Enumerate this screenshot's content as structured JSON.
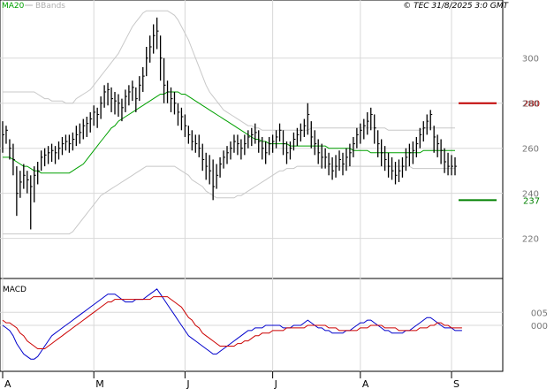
{
  "header": {
    "legend_ma": "MA20",
    "legend_bbands": "BBands",
    "stamp": "© TEC 31/8/2025 3:0 GMT"
  },
  "colors": {
    "price_bars": "#000000",
    "ma20": "#00a000",
    "bbands": "#c8c8c8",
    "resistance": "#c00000",
    "support": "#008000",
    "macd": "#0000cc",
    "signal": "#cc0000",
    "grid": "#d8d8d8"
  },
  "chart_data": [
    {
      "type": "line",
      "panel": "price",
      "yaxis": {
        "ticks": [
          220,
          240,
          260,
          280,
          300
        ],
        "tick_labels": [
          "220",
          "240",
          "260",
          "280",
          "300"
        ],
        "ylim": [
          203,
          325
        ]
      },
      "xaxis": {
        "labels": [
          "A",
          "M",
          "J",
          "J",
          "A",
          "S"
        ],
        "label_index": [
          0,
          26,
          52,
          77,
          102,
          128
        ],
        "n": 130
      },
      "levels": [
        {
          "value": 280,
          "label": "280",
          "color": "red"
        },
        {
          "value": 237,
          "label": "237",
          "color": "green"
        }
      ],
      "close": [
        266,
        268,
        260,
        255,
        240,
        245,
        248,
        246,
        243,
        248,
        250,
        256,
        257,
        258,
        259,
        258,
        260,
        262,
        263,
        262,
        264,
        266,
        267,
        270,
        271,
        273,
        276,
        275,
        280,
        285,
        286,
        282,
        281,
        280,
        278,
        283,
        285,
        287,
        282,
        288,
        292,
        300,
        305,
        310,
        312,
        300,
        288,
        285,
        282,
        280,
        276,
        274,
        270,
        266,
        263,
        262,
        260,
        255,
        252,
        250,
        243,
        248,
        253,
        256,
        258,
        260,
        263,
        262,
        260,
        262,
        265,
        266,
        267,
        263,
        260,
        258,
        262,
        263,
        265,
        268,
        262,
        258,
        260,
        264,
        266,
        268,
        270,
        275,
        265,
        262,
        258,
        256,
        256,
        253,
        250,
        252,
        255,
        253,
        256,
        258,
        262,
        266,
        268,
        270,
        272,
        275,
        269,
        262,
        258,
        255,
        252,
        250,
        248,
        250,
        252,
        256,
        258,
        259,
        262,
        266,
        269,
        272,
        275,
        265,
        262,
        259,
        254,
        252,
        252,
        252
      ],
      "high": [
        272,
        270,
        264,
        262,
        252,
        250,
        253,
        250,
        248,
        252,
        254,
        259,
        260,
        261,
        262,
        261,
        263,
        265,
        266,
        266,
        267,
        270,
        271,
        273,
        274,
        276,
        279,
        278,
        283,
        288,
        289,
        287,
        285,
        284,
        282,
        286,
        288,
        290,
        287,
        292,
        296,
        305,
        310,
        315,
        318,
        310,
        300,
        290,
        287,
        285,
        280,
        278,
        275,
        270,
        268,
        266,
        266,
        262,
        258,
        257,
        255,
        253,
        256,
        259,
        261,
        263,
        266,
        266,
        264,
        266,
        268,
        269,
        271,
        268,
        265,
        263,
        265,
        266,
        268,
        271,
        268,
        263,
        263,
        267,
        269,
        271,
        273,
        280,
        272,
        268,
        264,
        262,
        260,
        258,
        256,
        257,
        259,
        258,
        260,
        262,
        265,
        269,
        271,
        273,
        276,
        278,
        275,
        268,
        264,
        261,
        258,
        256,
        254,
        255,
        256,
        260,
        262,
        263,
        265,
        269,
        272,
        275,
        277,
        270,
        266,
        264,
        260,
        258,
        257,
        256
      ],
      "low": [
        258,
        262,
        255,
        248,
        230,
        238,
        242,
        240,
        224,
        236,
        244,
        250,
        252,
        253,
        254,
        253,
        255,
        257,
        259,
        258,
        259,
        261,
        262,
        264,
        265,
        267,
        270,
        269,
        273,
        278,
        279,
        276,
        275,
        274,
        272,
        276,
        279,
        281,
        276,
        281,
        285,
        292,
        298,
        302,
        304,
        290,
        280,
        280,
        276,
        275,
        270,
        268,
        265,
        262,
        259,
        258,
        256,
        250,
        246,
        244,
        237,
        242,
        247,
        251,
        253,
        255,
        258,
        257,
        255,
        257,
        260,
        261,
        262,
        258,
        255,
        253,
        257,
        258,
        260,
        263,
        257,
        253,
        255,
        259,
        261,
        263,
        265,
        266,
        260,
        257,
        253,
        251,
        251,
        248,
        246,
        247,
        250,
        248,
        250,
        252,
        256,
        260,
        262,
        264,
        266,
        268,
        262,
        256,
        252,
        250,
        247,
        246,
        244,
        245,
        247,
        250,
        252,
        253,
        256,
        260,
        263,
        266,
        268,
        258,
        256,
        253,
        249,
        248,
        248,
        248
      ],
      "ma20": [
        256,
        256,
        256,
        255,
        254,
        253,
        252,
        252,
        251,
        250,
        250,
        249,
        249,
        249,
        249,
        249,
        249,
        249,
        249,
        249,
        250,
        251,
        252,
        253,
        255,
        257,
        259,
        261,
        263,
        265,
        267,
        269,
        270,
        272,
        273,
        274,
        275,
        276,
        277,
        278,
        279,
        280,
        281,
        282,
        283,
        284,
        284,
        285,
        285,
        285,
        285,
        284,
        284,
        283,
        282,
        281,
        280,
        279,
        278,
        277,
        276,
        275,
        274,
        273,
        272,
        271,
        270,
        269,
        268,
        267,
        266,
        265,
        264,
        264,
        263,
        263,
        262,
        262,
        262,
        262,
        262,
        262,
        261,
        261,
        261,
        261,
        261,
        261,
        261,
        261,
        261,
        261,
        261,
        260,
        260,
        260,
        260,
        260,
        260,
        260,
        259,
        259,
        259,
        259,
        259,
        258,
        258,
        258,
        258,
        258,
        258,
        258,
        258,
        258,
        258,
        258,
        258,
        258,
        258,
        258,
        259,
        259,
        259,
        259,
        259,
        259,
        259,
        259,
        259,
        259
      ],
      "bb_upper": [
        285,
        285,
        285,
        285,
        285,
        285,
        285,
        285,
        285,
        285,
        284,
        283,
        282,
        282,
        281,
        281,
        281,
        281,
        280,
        280,
        280,
        282,
        283,
        284,
        285,
        286,
        288,
        290,
        292,
        294,
        296,
        298,
        300,
        302,
        305,
        308,
        311,
        314,
        316,
        318,
        320,
        321,
        321,
        321,
        321,
        321,
        321,
        321,
        320,
        319,
        317,
        314,
        311,
        308,
        304,
        300,
        296,
        292,
        288,
        285,
        283,
        281,
        279,
        277,
        276,
        275,
        274,
        273,
        272,
        271,
        270,
        270,
        269,
        269,
        268,
        268,
        268,
        268,
        268,
        268,
        268,
        268,
        268,
        268,
        268,
        268,
        268,
        268,
        269,
        269,
        269,
        269,
        269,
        269,
        269,
        269,
        269,
        269,
        269,
        269,
        269,
        269,
        269,
        269,
        269,
        269,
        269,
        269,
        269,
        269,
        268,
        268,
        268,
        268,
        268,
        268,
        268,
        268,
        268,
        268,
        269,
        269,
        269,
        269,
        269,
        269,
        269,
        269,
        269,
        269
      ],
      "bb_lower": [
        222,
        222,
        222,
        222,
        222,
        222,
        222,
        222,
        222,
        222,
        222,
        222,
        222,
        222,
        222,
        222,
        222,
        222,
        222,
        222,
        223,
        225,
        227,
        229,
        231,
        233,
        235,
        237,
        239,
        240,
        241,
        242,
        243,
        244,
        245,
        246,
        247,
        248,
        249,
        250,
        251,
        252,
        252,
        252,
        252,
        252,
        252,
        252,
        252,
        252,
        251,
        250,
        249,
        248,
        246,
        245,
        244,
        243,
        241,
        240,
        239,
        238,
        238,
        238,
        238,
        238,
        238,
        239,
        239,
        240,
        241,
        242,
        243,
        244,
        245,
        246,
        247,
        248,
        249,
        250,
        250,
        251,
        251,
        251,
        252,
        252,
        252,
        252,
        252,
        252,
        252,
        252,
        252,
        252,
        252,
        252,
        252,
        252,
        252,
        252,
        252,
        252,
        252,
        252,
        252,
        252,
        252,
        252,
        252,
        252,
        252,
        252,
        252,
        252,
        252,
        252,
        252,
        251,
        251,
        251,
        251,
        251,
        251,
        251,
        251,
        251,
        251,
        251,
        251,
        251
      ]
    },
    {
      "type": "line",
      "panel": "macd",
      "title": "MACD",
      "yaxis": {
        "ticks": [
          0,
          5
        ],
        "tick_labels": [
          "000",
          "005"
        ],
        "ylim": [
          -17,
          17
        ]
      },
      "series": [
        {
          "key": "macd",
          "values": [
            0,
            -1,
            -2,
            -4,
            -7,
            -9,
            -11,
            -12,
            -13,
            -13,
            -12,
            -10,
            -8,
            -6,
            -4,
            -3,
            -2,
            -1,
            0,
            1,
            2,
            3,
            4,
            5,
            6,
            7,
            8,
            9,
            10,
            11,
            12,
            12,
            12,
            11,
            10,
            9,
            9,
            9,
            10,
            10,
            10,
            11,
            12,
            13,
            14,
            12,
            10,
            8,
            6,
            4,
            2,
            0,
            -2,
            -4,
            -5,
            -6,
            -7,
            -8,
            -9,
            -10,
            -11,
            -11,
            -10,
            -9,
            -8,
            -7,
            -6,
            -5,
            -4,
            -3,
            -2,
            -2,
            -1,
            -1,
            -1,
            0,
            0,
            0,
            0,
            0,
            -1,
            -1,
            -1,
            0,
            0,
            0,
            1,
            2,
            1,
            0,
            -1,
            -1,
            -2,
            -2,
            -3,
            -3,
            -3,
            -3,
            -2,
            -2,
            -1,
            0,
            1,
            1,
            2,
            2,
            1,
            0,
            -1,
            -2,
            -2,
            -3,
            -3,
            -3,
            -3,
            -2,
            -2,
            -1,
            0,
            1,
            2,
            3,
            3,
            2,
            1,
            0,
            -1,
            -1,
            -1,
            -2,
            -2,
            -2
          ]
        },
        {
          "key": "signal",
          "values": [
            2,
            1,
            1,
            0,
            -1,
            -3,
            -4,
            -6,
            -7,
            -8,
            -9,
            -9,
            -9,
            -8,
            -7,
            -6,
            -5,
            -4,
            -3,
            -2,
            -1,
            0,
            1,
            2,
            3,
            4,
            5,
            6,
            7,
            8,
            9,
            9,
            10,
            10,
            10,
            10,
            10,
            10,
            10,
            10,
            10,
            10,
            10,
            11,
            11,
            11,
            11,
            11,
            10,
            9,
            8,
            7,
            5,
            3,
            2,
            0,
            -1,
            -3,
            -4,
            -5,
            -6,
            -7,
            -8,
            -8,
            -8,
            -8,
            -8,
            -7,
            -7,
            -6,
            -6,
            -5,
            -4,
            -4,
            -3,
            -3,
            -3,
            -2,
            -2,
            -2,
            -2,
            -1,
            -1,
            -1,
            -1,
            -1,
            -1,
            0,
            0,
            0,
            0,
            0,
            0,
            -1,
            -1,
            -1,
            -2,
            -2,
            -2,
            -2,
            -2,
            -2,
            -1,
            -1,
            -1,
            0,
            0,
            0,
            0,
            -1,
            -1,
            -1,
            -1,
            -2,
            -2,
            -2,
            -2,
            -2,
            -2,
            -1,
            -1,
            -1,
            0,
            0,
            1,
            1,
            0,
            0,
            -1,
            -1,
            -1,
            -1
          ]
        }
      ]
    }
  ]
}
